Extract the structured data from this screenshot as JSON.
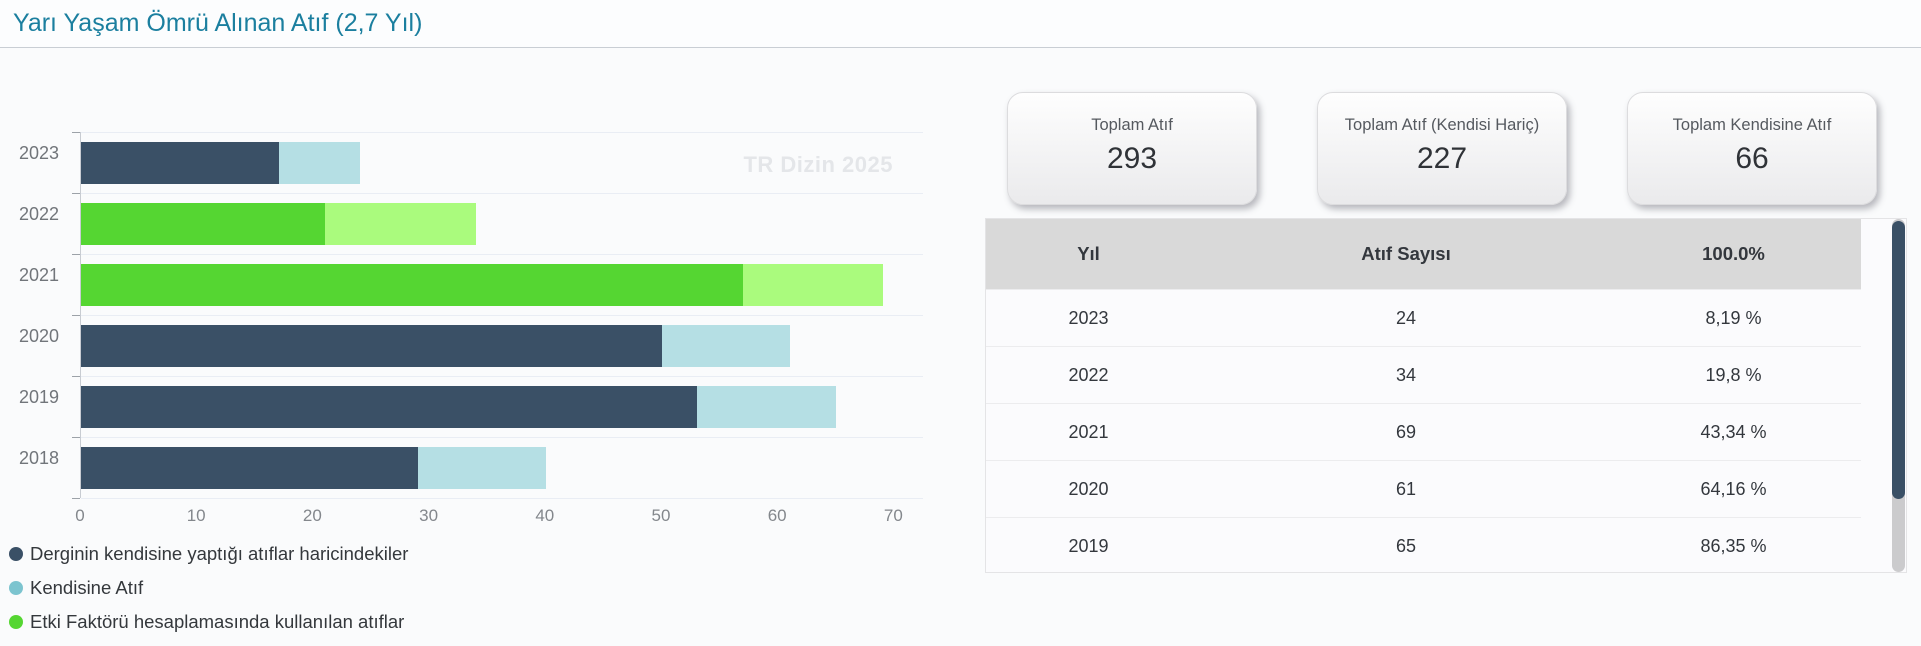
{
  "page": {
    "title": "Yarı Yaşam Ömrü Alınan Atıf (2,7 Yıl)",
    "watermark": "TR Dizin 2025"
  },
  "colors": {
    "title_accent": "#1b7f9f",
    "bar_navy": "#3a5066",
    "bar_lightblue": "#b5dfe4",
    "bar_green": "#55d632",
    "bar_lightgreen": "#aafb7d",
    "legend_blue_dot": "#7cc4cf",
    "table_header_bg": "#d9d9d9",
    "scrollbar_thumb": "#3a5066"
  },
  "chart_data": {
    "type": "bar",
    "orientation": "horizontal",
    "title": "Yarı Yaşam Ömrü Alınan Atıf (2,7 Yıl)",
    "categories": [
      "2023",
      "2022",
      "2021",
      "2020",
      "2019",
      "2018"
    ],
    "xticks": [
      0,
      10,
      20,
      30,
      40,
      50,
      60,
      70
    ],
    "xlim": [
      0,
      72.5
    ],
    "grid": "horizontal-category-boundaries",
    "legend_position": "bottom-left",
    "watermark": "TR Dizin 2025",
    "bars": [
      {
        "year": "2023",
        "total": 24,
        "segments": [
          {
            "label": "Derginin kendisine yaptığı atıflar haricindekiler",
            "value": 17,
            "color": "#3a5066"
          },
          {
            "label": "Kendisine Atıf",
            "value": 7,
            "color": "#b5dfe4"
          }
        ]
      },
      {
        "year": "2022",
        "total": 34,
        "segments": [
          {
            "label": "Etki Faktörü hesaplamasında kullanılan atıflar",
            "value": 21,
            "color": "#55d632"
          },
          {
            "label": "Kendisine Atıf",
            "value": 13,
            "color": "#aafb7d"
          }
        ]
      },
      {
        "year": "2021",
        "total": 69,
        "segments": [
          {
            "label": "Etki Faktörü hesaplamasında kullanılan atıflar",
            "value": 57,
            "color": "#55d632"
          },
          {
            "label": "Kendisine Atıf",
            "value": 12,
            "color": "#aafb7d"
          }
        ]
      },
      {
        "year": "2020",
        "total": 61,
        "segments": [
          {
            "label": "Derginin kendisine yaptığı atıflar haricindekiler",
            "value": 50,
            "color": "#3a5066"
          },
          {
            "label": "Kendisine Atıf",
            "value": 11,
            "color": "#b5dfe4"
          }
        ]
      },
      {
        "year": "2019",
        "total": 65,
        "segments": [
          {
            "label": "Derginin kendisine yaptığı atıflar haricindekiler",
            "value": 53,
            "color": "#3a5066"
          },
          {
            "label": "Kendisine Atıf",
            "value": 12,
            "color": "#b5dfe4"
          }
        ]
      },
      {
        "year": "2018",
        "total": 40,
        "segments": [
          {
            "label": "Derginin kendisine yaptığı atıflar haricindekiler",
            "value": 29,
            "color": "#3a5066"
          },
          {
            "label": "Kendisine Atıf",
            "value": 11,
            "color": "#b5dfe4"
          }
        ]
      }
    ],
    "legend": [
      {
        "label": "Derginin kendisine yaptığı atıflar haricindekiler",
        "color": "#3a5066"
      },
      {
        "label": "Kendisine Atıf",
        "color": "#7cc4cf"
      },
      {
        "label": "Etki Faktörü hesaplamasında kullanılan atıflar",
        "color": "#55d632"
      }
    ]
  },
  "cards": [
    {
      "label": "Toplam Atıf",
      "value": "293"
    },
    {
      "label": "Toplam Atıf (Kendisi Hariç)",
      "value": "227"
    },
    {
      "label": "Toplam Kendisine Atıf",
      "value": "66"
    }
  ],
  "table": {
    "headers": [
      "Yıl",
      "Atıf Sayısı",
      "100.0%"
    ],
    "rows": [
      [
        "2023",
        "24",
        "8,19 %"
      ],
      [
        "2022",
        "34",
        "19,8 %"
      ],
      [
        "2021",
        "69",
        "43,34 %"
      ],
      [
        "2020",
        "61",
        "64,16 %"
      ],
      [
        "2019",
        "65",
        "86,35 %"
      ]
    ]
  }
}
